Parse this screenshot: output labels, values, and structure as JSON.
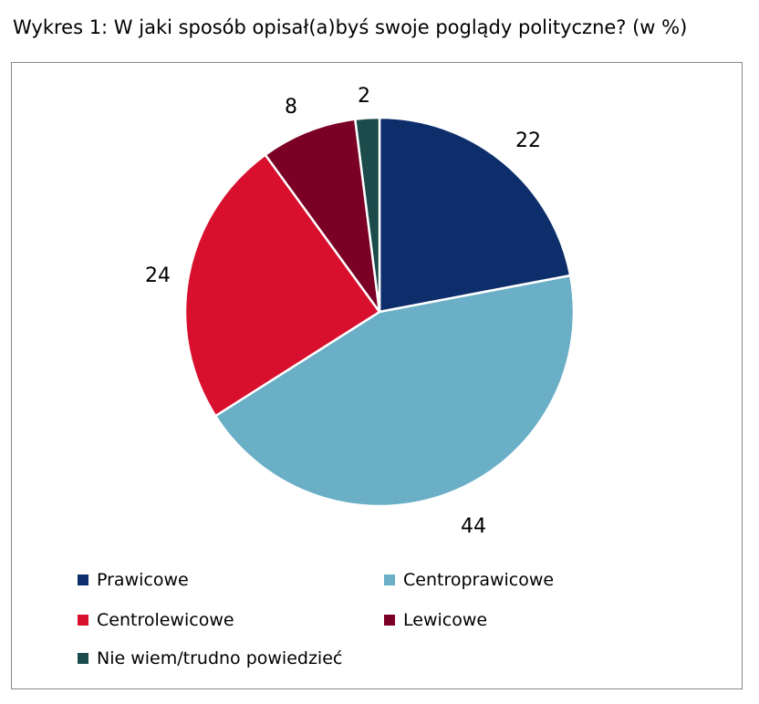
{
  "chart_data": {
    "type": "pie",
    "title": "Wykres 1: W jaki sposób opisał(a)byś swoje poglądy polityczne? (w %)",
    "categories": [
      "Prawicowe",
      "Centroprawicowe",
      "Centrolewicowe",
      "Lewicowe",
      "Nie wiem/trudno powiedzieć"
    ],
    "values": [
      22,
      44,
      24,
      8,
      2
    ],
    "labels": [
      "22",
      "44",
      "24",
      "8",
      "2"
    ],
    "colors": [
      "#0d2e6b",
      "#6aafc6",
      "#d8102e",
      "#7a0026",
      "#1b4b4b"
    ],
    "legend_position": "bottom"
  }
}
